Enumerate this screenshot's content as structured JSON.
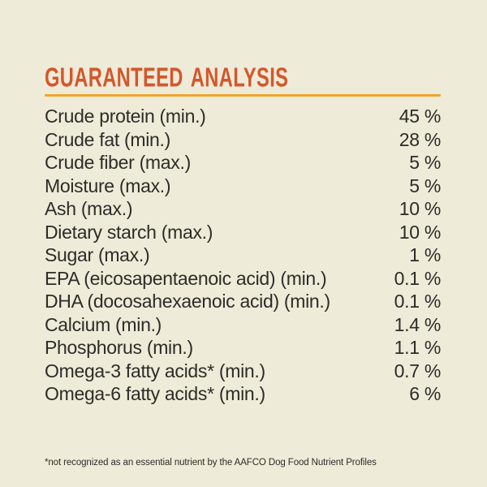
{
  "colors": {
    "background": "#eeebd9",
    "text": "#2d2c27",
    "accent": "#d4572b",
    "rule": "#f2a42a"
  },
  "header": {
    "title": "GUARANTEED ANALYSIS"
  },
  "table": {
    "rows": [
      {
        "label": "Crude protein (min.)",
        "value": "45 %"
      },
      {
        "label": "Crude fat (min.)",
        "value": "28 %"
      },
      {
        "label": "Crude fiber (max.)",
        "value": "5 %"
      },
      {
        "label": "Moisture (max.)",
        "value": "5 %"
      },
      {
        "label": "Ash (max.)",
        "value": "10 %"
      },
      {
        "label": "Dietary starch (max.)",
        "value": "10 %"
      },
      {
        "label": "Sugar (max.)",
        "value": "1 %"
      },
      {
        "label": "EPA (eicosapentaenoic acid) (min.)",
        "value": "0.1 %"
      },
      {
        "label": "DHA (docosahexaenoic acid) (min.)",
        "value": "0.1 %"
      },
      {
        "label": "Calcium (min.)",
        "value": "1.4 %"
      },
      {
        "label": "Phosphorus (min.)",
        "value": "1.1 %"
      },
      {
        "label": "Omega-3 fatty acids* (min.)",
        "value": "0.7 %"
      },
      {
        "label": "Omega-6 fatty acids* (min.)",
        "value": "6 %"
      }
    ]
  },
  "footnote": {
    "text": "*not recognized as an essential nutrient by the AAFCO Dog Food Nutrient Profiles"
  }
}
